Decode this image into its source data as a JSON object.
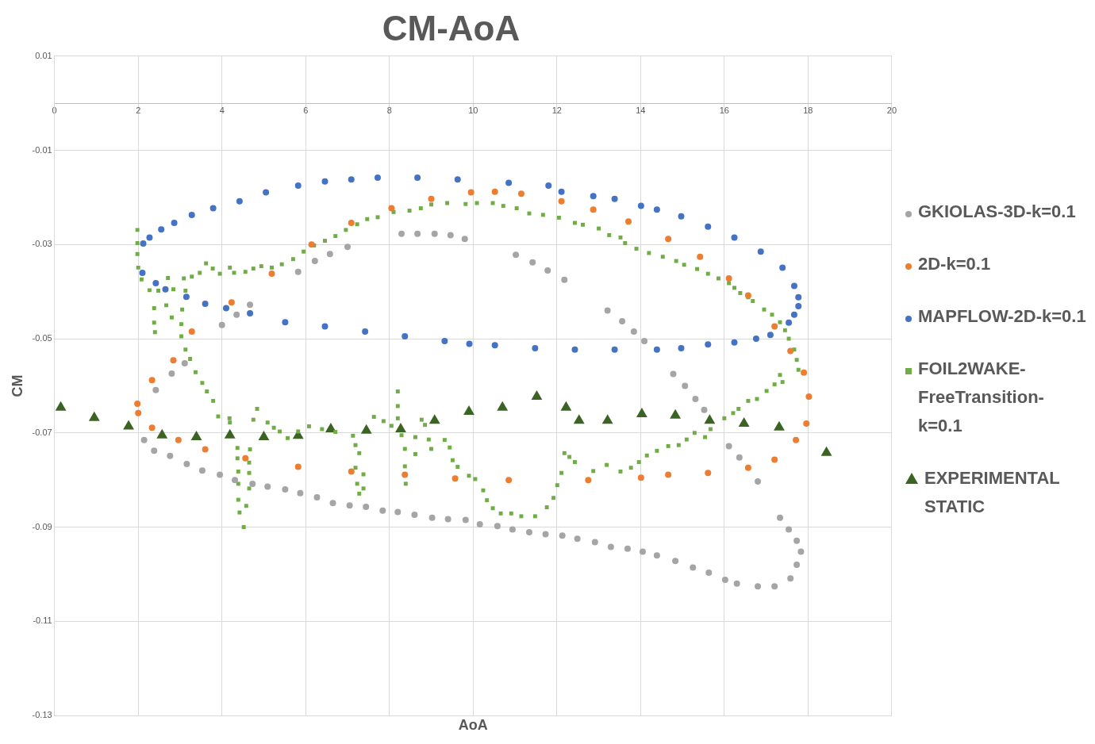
{
  "chart_data": {
    "type": "scatter",
    "title": "CM-AoA",
    "xlabel": "AoA",
    "ylabel": "CM",
    "legend": "right",
    "grid": true,
    "xlim": [
      0,
      20
    ],
    "xticks": [
      0,
      2,
      4,
      6,
      8,
      10,
      12,
      14,
      16,
      18,
      20
    ],
    "ylim": [
      -0.13,
      0.01
    ],
    "yticks": [
      0.01,
      -0.01,
      -0.03,
      -0.05,
      -0.07,
      -0.09,
      -0.11,
      -0.13
    ],
    "series": [
      {
        "name": "GKIOLAS-3D-k=0.1",
        "color": "#a5a5a5",
        "marker": "circle",
        "x": [
          2.14,
          2.38,
          2.76,
          3.16,
          3.53,
          3.95,
          4.31,
          4.73,
          5.09,
          5.51,
          5.87,
          6.27,
          6.65,
          7.05,
          7.44,
          7.84,
          8.2,
          8.6,
          9.02,
          9.4,
          9.82,
          10.16,
          10.58,
          10.94,
          11.34,
          11.73,
          12.13,
          12.49,
          12.91,
          13.29,
          13.69,
          14.05,
          14.39,
          14.83,
          15.25,
          15.63,
          16.02,
          16.3,
          16.8,
          17.2,
          17.58,
          17.73,
          17.83,
          17.73,
          17.54,
          17.33,
          16.8,
          16.36,
          16.11,
          15.52,
          15.31,
          15.06,
          14.78,
          14.09,
          13.84,
          13.56,
          13.21,
          12.18,
          11.78,
          11.42,
          11.02,
          9.8,
          9.46,
          9.08,
          8.67,
          8.29,
          7.0,
          6.58,
          6.22,
          5.82,
          4.67,
          4.35,
          4.0,
          3.11,
          2.8,
          2.42
        ],
        "values": [
          -0.0715,
          -0.0738,
          -0.0749,
          -0.0766,
          -0.078,
          -0.0789,
          -0.08,
          -0.0808,
          -0.0814,
          -0.082,
          -0.0828,
          -0.0837,
          -0.0849,
          -0.0854,
          -0.0857,
          -0.0865,
          -0.0868,
          -0.0874,
          -0.088,
          -0.0883,
          -0.0885,
          -0.0894,
          -0.0898,
          -0.0905,
          -0.0911,
          -0.0915,
          -0.0918,
          -0.0925,
          -0.0932,
          -0.0942,
          -0.0946,
          -0.0952,
          -0.096,
          -0.0972,
          -0.0986,
          -0.0997,
          -0.1012,
          -0.102,
          -0.1026,
          -0.1026,
          -0.1009,
          -0.098,
          -0.0952,
          -0.0929,
          -0.0905,
          -0.088,
          -0.0803,
          -0.0752,
          -0.0728,
          -0.0651,
          -0.0628,
          -0.06,
          -0.0575,
          -0.0505,
          -0.0485,
          -0.0463,
          -0.044,
          -0.0375,
          -0.0355,
          -0.0338,
          -0.0322,
          -0.0288,
          -0.028,
          -0.0277,
          -0.0277,
          -0.0277,
          -0.0305,
          -0.032,
          -0.0335,
          -0.0358,
          -0.0428,
          -0.0449,
          -0.0471,
          -0.0552,
          -0.0574,
          -0.0609
        ]
      },
      {
        "name": "2D-k=0.1",
        "color": "#ed7d31",
        "marker": "circle",
        "x": [
          1.98,
          2.33,
          2.84,
          3.28,
          4.23,
          5.19,
          6.14,
          7.09,
          8.05,
          9.0,
          9.95,
          10.52,
          11.15,
          12.11,
          12.87,
          13.71,
          14.66,
          15.42,
          16.11,
          16.57,
          17.2,
          17.58,
          17.9,
          18.02,
          17.96,
          17.71,
          17.2,
          16.57,
          15.61,
          14.66,
          14.01,
          12.75,
          10.85,
          9.57,
          8.37,
          7.09,
          5.82,
          4.56,
          3.6,
          2.96,
          2.33,
          2.0
        ],
        "values": [
          -0.0638,
          -0.0588,
          -0.0546,
          -0.0485,
          -0.0423,
          -0.0362,
          -0.03,
          -0.0254,
          -0.0223,
          -0.0203,
          -0.0189,
          -0.0188,
          -0.0192,
          -0.0208,
          -0.0226,
          -0.0251,
          -0.0288,
          -0.0326,
          -0.0372,
          -0.0408,
          -0.0474,
          -0.0526,
          -0.0572,
          -0.0623,
          -0.068,
          -0.0715,
          -0.0757,
          -0.0774,
          -0.0785,
          -0.0789,
          -0.0795,
          -0.08,
          -0.08,
          -0.0797,
          -0.0789,
          -0.0782,
          -0.0772,
          -0.0754,
          -0.0735,
          -0.0715,
          -0.0689,
          -0.0658
        ]
      },
      {
        "name": "MAPFLOW-2D-k=0.1",
        "color": "#4472c4",
        "marker": "circle",
        "x": [
          2.12,
          2.27,
          2.55,
          2.86,
          3.28,
          3.79,
          4.42,
          5.05,
          5.82,
          6.46,
          7.09,
          7.72,
          8.67,
          9.63,
          10.85,
          11.8,
          12.11,
          12.87,
          13.38,
          14.01,
          14.39,
          14.97,
          15.61,
          16.24,
          16.87,
          17.39,
          17.67,
          17.77,
          17.77,
          17.67,
          17.54,
          17.1,
          16.76,
          16.24,
          15.61,
          14.97,
          14.39,
          13.38,
          12.43,
          11.48,
          10.52,
          9.91,
          9.32,
          8.37,
          7.42,
          6.46,
          5.51,
          4.67,
          4.1,
          3.6,
          3.15,
          2.65,
          2.42,
          2.1
        ],
        "values": [
          -0.0298,
          -0.0285,
          -0.0268,
          -0.0254,
          -0.0237,
          -0.0223,
          -0.0208,
          -0.0189,
          -0.0175,
          -0.0166,
          -0.0162,
          -0.0158,
          -0.0158,
          -0.0162,
          -0.0169,
          -0.0175,
          -0.0188,
          -0.0197,
          -0.0203,
          -0.0218,
          -0.0226,
          -0.024,
          -0.0262,
          -0.0285,
          -0.0315,
          -0.0349,
          -0.0388,
          -0.0412,
          -0.0431,
          -0.0449,
          -0.0466,
          -0.0492,
          -0.05,
          -0.0508,
          -0.0512,
          -0.052,
          -0.0523,
          -0.0523,
          -0.0523,
          -0.052,
          -0.0514,
          -0.0511,
          -0.0505,
          -0.0495,
          -0.0485,
          -0.0474,
          -0.0465,
          -0.0446,
          -0.0435,
          -0.0426,
          -0.0411,
          -0.0395,
          -0.0382,
          -0.036
        ]
      },
      {
        "name": "FOIL2WAKE-FreeTransition-k=0.1",
        "color": "#70ad47",
        "marker": "square",
        "x": [
          1.98,
          1.98,
          1.98,
          2.0,
          2.08,
          2.27,
          2.48,
          2.84,
          3.13,
          2.38,
          2.67,
          3.05,
          2.8,
          2.38,
          3.03,
          2.4,
          3.03,
          3.13,
          3.24,
          3.37,
          3.53,
          3.64,
          3.79,
          3.91,
          4.18,
          4.19,
          4.84,
          4.75,
          5.09,
          5.24,
          5.38,
          5.57,
          5.82,
          6.08,
          6.39,
          6.71,
          7.13,
          7.63,
          7.86,
          8.05,
          8.2,
          8.2,
          8.2,
          8.29,
          8.62,
          8.77,
          8.85,
          8.94,
          9.32,
          9.44,
          9.51,
          9.63,
          9.9,
          4.37,
          4.67,
          4.37,
          4.65,
          4.39,
          4.65,
          4.39,
          4.65,
          4.39,
          4.58,
          4.42,
          4.52,
          7.19,
          7.28,
          7.19,
          7.38,
          7.23,
          7.38,
          7.28,
          8.37,
          8.62,
          8.37,
          8.39,
          9.0,
          2.71,
          3.09,
          3.28,
          3.47,
          3.62,
          3.78,
          3.95,
          4.19,
          4.29,
          4.56,
          4.75,
          4.94,
          5.19,
          5.43,
          5.7,
          5.95,
          6.2,
          6.46,
          6.71,
          6.96,
          7.23,
          7.47,
          7.72,
          8.1,
          8.48,
          8.75,
          9.0,
          9.38,
          9.82,
          10.09,
          10.47,
          10.72,
          11.04,
          11.34,
          11.67,
          12.05,
          12.43,
          12.62,
          13.0,
          13.25,
          13.52,
          13.63,
          13.9,
          14.2,
          14.53,
          14.85,
          15.04,
          15.35,
          15.61,
          15.86,
          16.11,
          16.24,
          16.38,
          16.57,
          16.68,
          16.95,
          17.14,
          17.33,
          17.45,
          17.54,
          17.67,
          17.73,
          17.77,
          17.33,
          17.39,
          17.2,
          17.01,
          16.78,
          16.57,
          16.34,
          16.21,
          16.0,
          15.67,
          15.54,
          15.29,
          15.1,
          14.91,
          14.66,
          14.39,
          14.15,
          13.96,
          13.77,
          13.52,
          13.19,
          12.87,
          12.43,
          12.3,
          12.18,
          12.11,
          12.01,
          11.92,
          11.76,
          11.48,
          11.15,
          10.91,
          10.66,
          10.47,
          10.33,
          10.24,
          10.05
        ],
        "values": [
          -0.0269,
          -0.0297,
          -0.032,
          -0.0349,
          -0.0374,
          -0.0397,
          -0.0398,
          -0.0395,
          -0.0398,
          -0.0435,
          -0.0429,
          -0.0438,
          -0.0455,
          -0.0466,
          -0.0469,
          -0.0486,
          -0.0495,
          -0.0523,
          -0.0543,
          -0.0571,
          -0.0594,
          -0.0612,
          -0.0632,
          -0.0665,
          -0.0669,
          -0.0678,
          -0.0649,
          -0.0672,
          -0.0678,
          -0.0689,
          -0.0697,
          -0.0711,
          -0.0697,
          -0.0686,
          -0.0692,
          -0.0698,
          -0.0706,
          -0.0666,
          -0.0675,
          -0.0685,
          -0.0612,
          -0.0643,
          -0.0669,
          -0.0705,
          -0.0709,
          -0.0672,
          -0.0683,
          -0.0714,
          -0.0715,
          -0.0731,
          -0.0758,
          -0.0772,
          -0.0791,
          -0.0732,
          -0.0735,
          -0.0754,
          -0.0763,
          -0.0782,
          -0.0785,
          -0.0808,
          -0.0818,
          -0.0842,
          -0.0855,
          -0.0869,
          -0.09,
          -0.0726,
          -0.0743,
          -0.0774,
          -0.0788,
          -0.0808,
          -0.0818,
          -0.0829,
          -0.0734,
          -0.0745,
          -0.0771,
          -0.0808,
          -0.0734,
          -0.0371,
          -0.0372,
          -0.0368,
          -0.036,
          -0.034,
          -0.0351,
          -0.0362,
          -0.0349,
          -0.036,
          -0.0358,
          -0.0351,
          -0.0346,
          -0.0349,
          -0.0342,
          -0.0331,
          -0.0315,
          -0.0302,
          -0.0292,
          -0.0282,
          -0.0269,
          -0.0257,
          -0.0246,
          -0.0242,
          -0.0231,
          -0.0228,
          -0.0223,
          -0.0215,
          -0.0212,
          -0.0214,
          -0.0212,
          -0.0212,
          -0.0218,
          -0.0223,
          -0.0234,
          -0.0237,
          -0.0243,
          -0.0254,
          -0.0258,
          -0.0266,
          -0.028,
          -0.0285,
          -0.0297,
          -0.0309,
          -0.0318,
          -0.0326,
          -0.0335,
          -0.0343,
          -0.0352,
          -0.0362,
          -0.0372,
          -0.0382,
          -0.0392,
          -0.0403,
          -0.0412,
          -0.042,
          -0.0438,
          -0.0449,
          -0.0465,
          -0.0482,
          -0.05,
          -0.0523,
          -0.0545,
          -0.0566,
          -0.0577,
          -0.0592,
          -0.0597,
          -0.0611,
          -0.0628,
          -0.0632,
          -0.0649,
          -0.0658,
          -0.0669,
          -0.0692,
          -0.0709,
          -0.07,
          -0.0714,
          -0.0726,
          -0.0728,
          -0.0738,
          -0.0748,
          -0.0762,
          -0.0774,
          -0.0782,
          -0.0768,
          -0.0781,
          -0.0762,
          -0.0751,
          -0.0743,
          -0.0785,
          -0.0811,
          -0.0838,
          -0.0858,
          -0.0877,
          -0.0877,
          -0.0871,
          -0.0871,
          -0.086,
          -0.0843,
          -0.0822,
          -0.0798
        ]
      },
      {
        "name": "EXPERIMENTAL STATIC",
        "color": "#3b6323",
        "marker": "triangle",
        "x": [
          0.15,
          0.95,
          1.77,
          2.57,
          3.39,
          4.19,
          5.0,
          5.82,
          6.6,
          7.45,
          8.27,
          9.08,
          9.9,
          10.7,
          11.52,
          12.22,
          12.53,
          13.21,
          14.03,
          14.83,
          15.65,
          16.47,
          17.31,
          18.44
        ],
        "values": [
          -0.0646,
          -0.0668,
          -0.0686,
          -0.0705,
          -0.0709,
          -0.0705,
          -0.0709,
          -0.0706,
          -0.0692,
          -0.0695,
          -0.0692,
          -0.0674,
          -0.0655,
          -0.0646,
          -0.0623,
          -0.0646,
          -0.0674,
          -0.0674,
          -0.066,
          -0.0663,
          -0.0674,
          -0.068,
          -0.0688,
          -0.0742
        ]
      }
    ]
  }
}
